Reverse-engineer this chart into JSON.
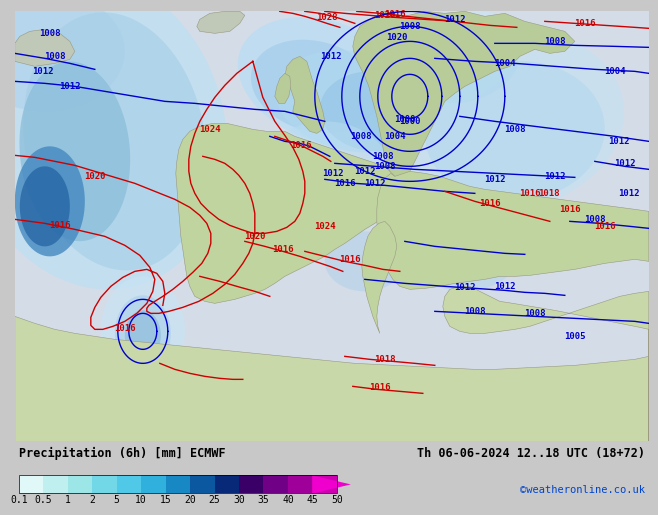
{
  "title_left": "Precipitation (6h) [mm] ECMWF",
  "title_right": "Th 06-06-2024 12..18 UTC (18+72)",
  "credit": "©weatheronline.co.uk",
  "colorbar_values": [
    0.1,
    0.5,
    1,
    2,
    5,
    10,
    15,
    20,
    25,
    30,
    35,
    40,
    45,
    50
  ],
  "colorbar_colors": [
    "#e0f8f8",
    "#c0efef",
    "#9de6e8",
    "#72d8e8",
    "#50c8e8",
    "#30b0dc",
    "#1888c4",
    "#0c58a0",
    "#082878",
    "#3a0068",
    "#700085",
    "#a0009a",
    "#cc00b0",
    "#f000cc"
  ],
  "ocean_color": "#d8e8f0",
  "land_color": "#c8c8b8",
  "precip_light": "#b8dff0",
  "precip_mid": "#80c4e8",
  "precip_dark": "#4090c8",
  "green_land": "#c8dcb0",
  "green_land2": "#b0cc98",
  "bg_color": "#c8c8c8",
  "title_fontsize": 8.5,
  "colorbar_label_fontsize": 7.0,
  "isobar_fontsize": 6.5
}
